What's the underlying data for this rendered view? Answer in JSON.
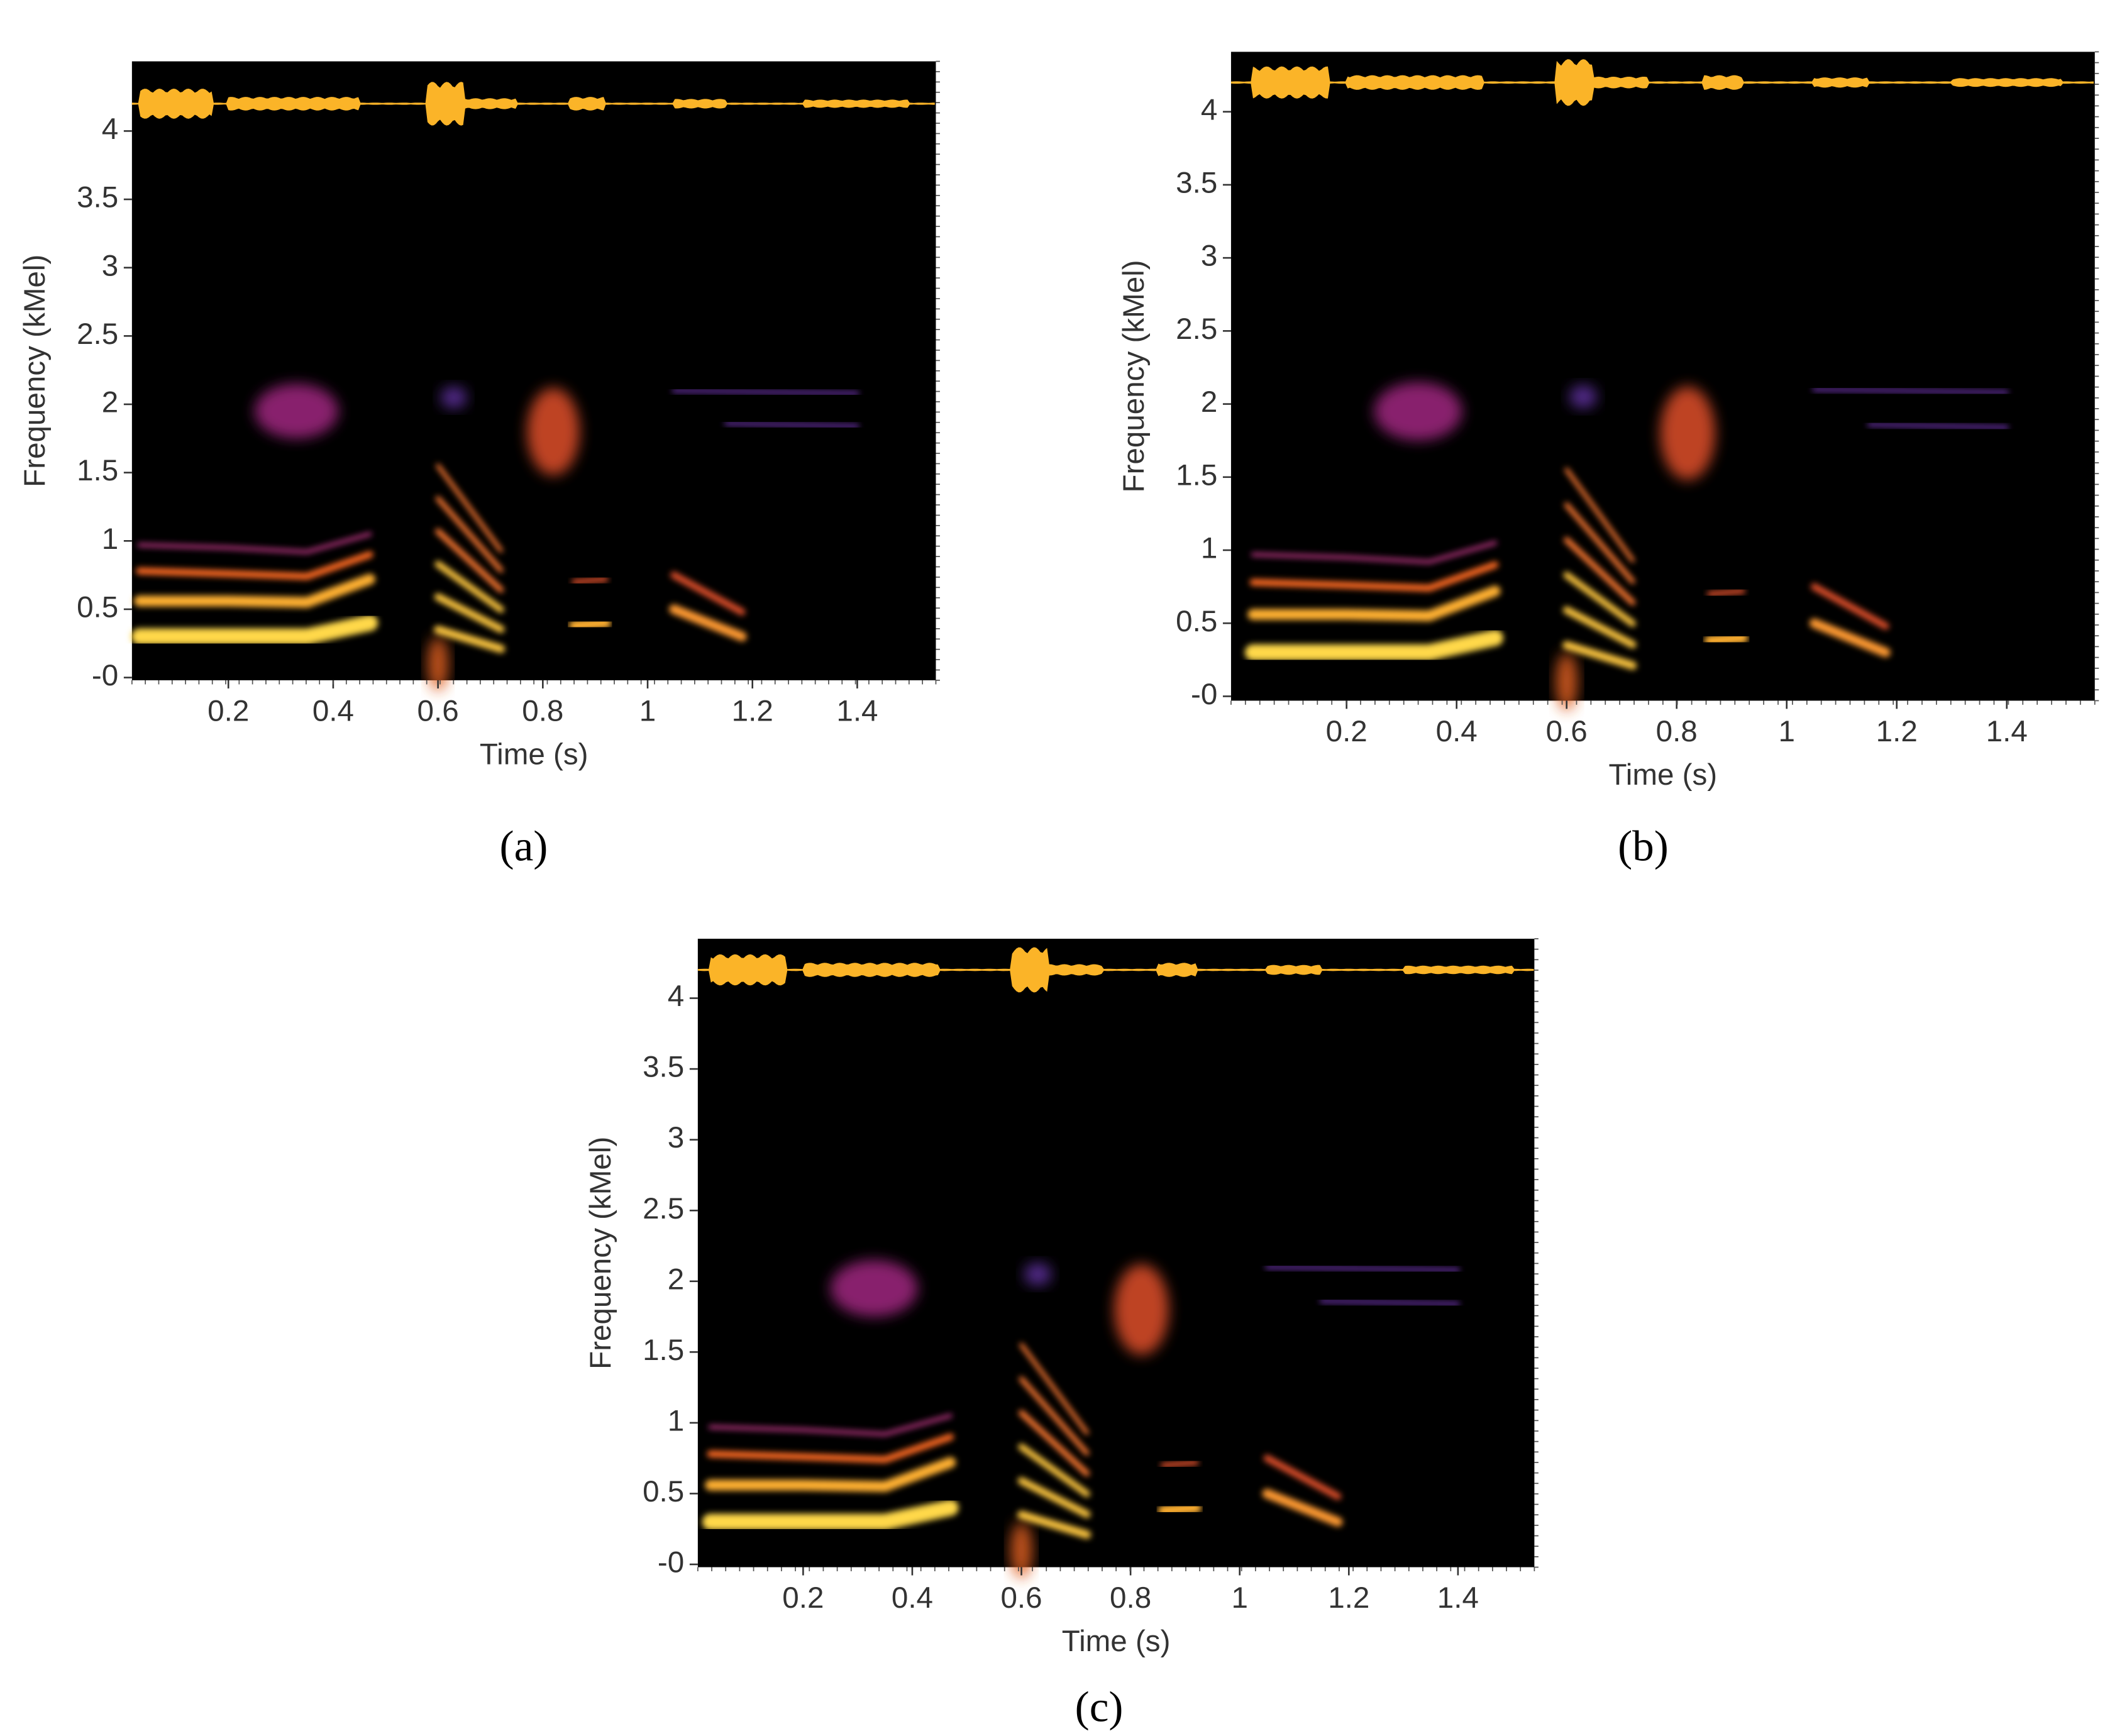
{
  "chart_data": [
    {
      "type": "spectrogram",
      "label": "(a)",
      "xlabel": "Time (s)",
      "ylabel": "Frequency (kMel)",
      "xlim": [
        0.016,
        1.55
      ],
      "ylim": [
        -0.02,
        4.51
      ],
      "xticks": [
        0.2,
        0.4,
        0.6,
        0.8,
        1,
        1.2,
        1.4
      ],
      "yticks": [
        {
          "value": 0,
          "label": "-0"
        },
        0.5,
        1,
        1.5,
        2,
        2.5,
        3,
        3.5,
        4
      ]
    },
    {
      "type": "spectrogram",
      "label": "(b)",
      "xlabel": "Time (s)",
      "ylabel": "Frequency (kMel)",
      "xlim": [
        -0.01,
        1.56
      ],
      "ylim": [
        -0.03,
        4.41
      ],
      "xticks": [
        0.2,
        0.4,
        0.6,
        0.8,
        1,
        1.2,
        1.4
      ],
      "yticks": [
        {
          "value": 0,
          "label": "-0"
        },
        0.5,
        1,
        1.5,
        2,
        2.5,
        3,
        3.5,
        4
      ]
    },
    {
      "type": "spectrogram",
      "label": "(c)",
      "xlabel": "Time (s)",
      "ylabel": "Frequency (kMel)",
      "xlim": [
        0.007,
        1.54
      ],
      "ylim": [
        -0.02,
        4.42
      ],
      "xticks": [
        0.2,
        0.4,
        0.6,
        0.8,
        1,
        1.2,
        1.4
      ],
      "yticks": [
        {
          "value": 0,
          "label": "-0"
        },
        0.5,
        1,
        1.5,
        2,
        2.5,
        3,
        3.5,
        4
      ]
    }
  ]
}
